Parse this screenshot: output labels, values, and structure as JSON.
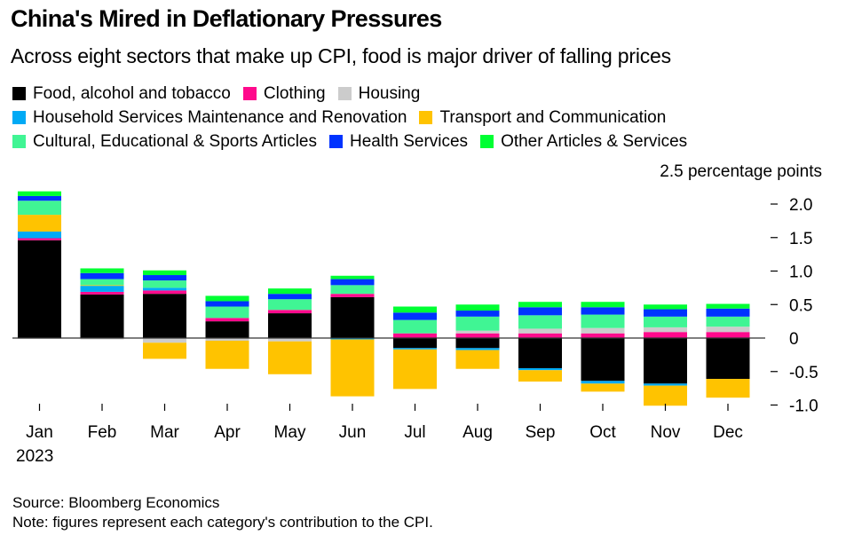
{
  "header": {
    "title": "China's Mired in Deflationary Pressures",
    "subtitle": "Across eight sectors that make up CPI, food is major driver of falling prices"
  },
  "footer": {
    "source": "Source: Bloomberg Economics",
    "note": "Note: figures represent each category's contribution to the CPI."
  },
  "chart_data": {
    "type": "bar",
    "stacked": true,
    "title": "China's Mired in Deflationary Pressures",
    "subtitle": "Across eight sectors that make up CPI, food is major driver of falling prices",
    "xlabel": "",
    "ylabel": "percentage points",
    "y_unit_label": "2.5 percentage points",
    "ylim": [
      -1.1,
      2.3
    ],
    "yticks": [
      2.0,
      1.5,
      1.0,
      0.5,
      0,
      -0.5,
      -1.0
    ],
    "ytick_labels": [
      "2.0",
      "1.5",
      "1.0",
      "0.5",
      "0",
      "-0.5",
      "-1.0"
    ],
    "y_axis_side": "right",
    "grid": false,
    "legend_position": "top",
    "categories": [
      "Jan",
      "Feb",
      "Mar",
      "Apr",
      "May",
      "Jun",
      "Jul",
      "Aug",
      "Sep",
      "Oct",
      "Nov",
      "Dec"
    ],
    "year_label": "2023",
    "series": [
      {
        "name": "Food, alcohol and tobacco",
        "color": "#000000",
        "values": [
          1.46,
          0.65,
          0.66,
          0.25,
          0.37,
          0.61,
          -0.15,
          -0.15,
          -0.45,
          -0.64,
          -0.68,
          -0.61
        ]
      },
      {
        "name": "Clothing",
        "color": "#ff0a8c",
        "values": [
          0.03,
          0.04,
          0.05,
          0.05,
          0.05,
          0.05,
          0.07,
          0.07,
          0.07,
          0.07,
          0.09,
          0.09
        ]
      },
      {
        "name": "Housing",
        "color": "#cccccc",
        "values": [
          -0.01,
          -0.02,
          -0.07,
          -0.04,
          -0.05,
          0.0,
          0.0,
          0.04,
          0.07,
          0.08,
          0.07,
          0.08
        ]
      },
      {
        "name": "Household Services Maintenance and Renovation",
        "color": "#00aaf5",
        "values": [
          0.1,
          0.09,
          0.04,
          0.0,
          0.0,
          -0.02,
          -0.02,
          -0.03,
          -0.03,
          -0.04,
          -0.03,
          0.0
        ]
      },
      {
        "name": "Transport and Communication",
        "color": "#ffc300",
        "values": [
          0.25,
          0.01,
          -0.24,
          -0.42,
          -0.49,
          -0.85,
          -0.59,
          -0.28,
          -0.17,
          -0.12,
          -0.3,
          -0.28
        ]
      },
      {
        "name": "Cultural, Educational & Sports Articles",
        "color": "#40f594",
        "values": [
          0.21,
          0.09,
          0.11,
          0.17,
          0.16,
          0.13,
          0.2,
          0.21,
          0.2,
          0.2,
          0.16,
          0.15
        ]
      },
      {
        "name": "Health Services",
        "color": "#0033ff",
        "values": [
          0.07,
          0.09,
          0.08,
          0.08,
          0.08,
          0.09,
          0.11,
          0.09,
          0.12,
          0.11,
          0.11,
          0.12
        ]
      },
      {
        "name": "Other Articles & Services",
        "color": "#00ff33",
        "values": [
          0.07,
          0.07,
          0.07,
          0.08,
          0.08,
          0.05,
          0.09,
          0.09,
          0.08,
          0.08,
          0.07,
          0.07
        ]
      }
    ],
    "legend_rows": [
      [
        0,
        1,
        2
      ],
      [
        3,
        4
      ],
      [
        5,
        6,
        7
      ]
    ]
  }
}
